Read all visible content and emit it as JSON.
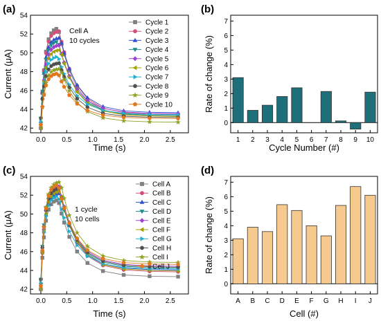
{
  "panel_labels": [
    "(a)",
    "(b)",
    "(c)",
    "(d)"
  ],
  "chart_data": [
    {
      "panel": "(a)",
      "type": "line",
      "xlabel": "Time (s)",
      "ylabel": "Current (μA)",
      "xlim": [
        -0.2,
        2.85
      ],
      "ylim": [
        41.5,
        54
      ],
      "xticks": [
        "0.0",
        "0.5",
        "1.0",
        "1.5",
        "2.0",
        "2.5"
      ],
      "xtick_values": [
        0,
        0.5,
        1,
        1.5,
        2,
        2.5
      ],
      "yticks": [
        "42",
        "44",
        "46",
        "48",
        "50",
        "52",
        "54"
      ],
      "ytick_values": [
        42,
        44,
        46,
        48,
        50,
        52,
        54
      ],
      "annotation": [
        "Cell A",
        "10 cycles"
      ],
      "legend_position": "top-right",
      "x": [
        0,
        0.03,
        0.06,
        0.1,
        0.15,
        0.2,
        0.25,
        0.3,
        0.35,
        0.4,
        0.45,
        0.55,
        0.7,
        0.9,
        1.2,
        1.6,
        2.1,
        2.65
      ],
      "series": [
        {
          "name": "Cycle 1",
          "peak": 52.6,
          "end": 43.2
        },
        {
          "name": "Cycle 2",
          "peak": 52.3,
          "end": 43.4
        },
        {
          "name": "Cycle 3",
          "peak": 51.6,
          "end": 43.6
        },
        {
          "name": "Cycle 4",
          "peak": 51.2,
          "end": 43.3
        },
        {
          "name": "Cycle 5",
          "peak": 50.8,
          "end": 43.5
        },
        {
          "name": "Cycle 6",
          "peak": 50.3,
          "end": 43.2
        },
        {
          "name": "Cycle 7",
          "peak": 49.6,
          "end": 43.4
        },
        {
          "name": "Cycle 8",
          "peak": 48.9,
          "end": 43.1
        },
        {
          "name": "Cycle 9",
          "peak": 48.3,
          "end": 42.6
        },
        {
          "name": "Cycle 10",
          "peak": 47.8,
          "end": 43.0
        }
      ]
    },
    {
      "panel": "(b)",
      "type": "bar",
      "xlabel": "Cycle Number (#)",
      "ylabel": "Rate of change (%)",
      "ylim": [
        -0.7,
        7.4
      ],
      "yticks": [
        "0",
        "1",
        "2",
        "3",
        "4",
        "5",
        "6",
        "7"
      ],
      "ytick_values": [
        0,
        1,
        2,
        3,
        4,
        5,
        6,
        7
      ],
      "categories": [
        "1",
        "2",
        "3",
        "4",
        "5",
        "6",
        "7",
        "8",
        "9",
        "10"
      ],
      "values": [
        3.1,
        0.85,
        1.2,
        1.8,
        2.4,
        0,
        2.15,
        0.12,
        -0.45,
        2.1
      ],
      "bar_color": "#1f6f7a"
    },
    {
      "panel": "(c)",
      "type": "line",
      "xlabel": "Time (s)",
      "ylabel": "Current (μA)",
      "xlim": [
        -0.2,
        2.85
      ],
      "ylim": [
        41.5,
        54
      ],
      "xticks": [
        "0.0",
        "0.5",
        "1.0",
        "1.5",
        "2.0",
        "2.5"
      ],
      "xtick_values": [
        0,
        0.5,
        1,
        1.5,
        2,
        2.5
      ],
      "yticks": [
        "42",
        "44",
        "46",
        "48",
        "50",
        "52",
        "54"
      ],
      "ytick_values": [
        42,
        44,
        46,
        48,
        50,
        52,
        54
      ],
      "annotation": [
        "1 cycle",
        "10 cells"
      ],
      "legend_position": "top-right",
      "x": [
        0,
        0.03,
        0.06,
        0.1,
        0.15,
        0.2,
        0.25,
        0.3,
        0.35,
        0.4,
        0.45,
        0.55,
        0.7,
        0.9,
        1.2,
        1.6,
        2.1,
        2.65
      ],
      "series": [
        {
          "name": "Cell A",
          "peak": 51.5,
          "end": 43.3
        },
        {
          "name": "Cell B",
          "peak": 52.8,
          "end": 43.8
        },
        {
          "name": "Cell C",
          "peak": 52.2,
          "end": 44.0
        },
        {
          "name": "Cell D",
          "peak": 53.0,
          "end": 44.2
        },
        {
          "name": "Cell E",
          "peak": 52.9,
          "end": 44.4
        },
        {
          "name": "Cell F",
          "peak": 52.4,
          "end": 43.9
        },
        {
          "name": "Cell G",
          "peak": 51.9,
          "end": 44.1
        },
        {
          "name": "Cell H",
          "peak": 52.7,
          "end": 44.3
        },
        {
          "name": "Cell I",
          "peak": 53.4,
          "end": 44.8
        },
        {
          "name": "Cell J",
          "peak": 53.1,
          "end": 44.6
        }
      ]
    },
    {
      "panel": "(d)",
      "type": "bar",
      "xlabel": "Cell (#)",
      "ylabel": "Rate of change (%)",
      "ylim": [
        -0.7,
        7.4
      ],
      "yticks": [
        "0",
        "1",
        "2",
        "3",
        "4",
        "5",
        "6",
        "7"
      ],
      "ytick_values": [
        0,
        1,
        2,
        3,
        4,
        5,
        6,
        7
      ],
      "categories": [
        "A",
        "B",
        "C",
        "D",
        "E",
        "F",
        "G",
        "H",
        "I",
        "J"
      ],
      "values": [
        3.1,
        3.9,
        3.6,
        5.45,
        5.05,
        4.0,
        3.3,
        5.4,
        6.7,
        6.1
      ],
      "bar_color": "#f6c98e"
    }
  ],
  "colors": {
    "series": [
      "#808080",
      "#d0507a",
      "#3050d0",
      "#1a8a8a",
      "#a040d0",
      "#a0a000",
      "#20b0d0",
      "#505050",
      "#90a020",
      "#e07820"
    ],
    "markers": [
      "square",
      "circle",
      "triangle-up",
      "triangle-down",
      "diamond",
      "triangle-left",
      "triangle-right",
      "hexagon",
      "star",
      "pentagon"
    ]
  }
}
